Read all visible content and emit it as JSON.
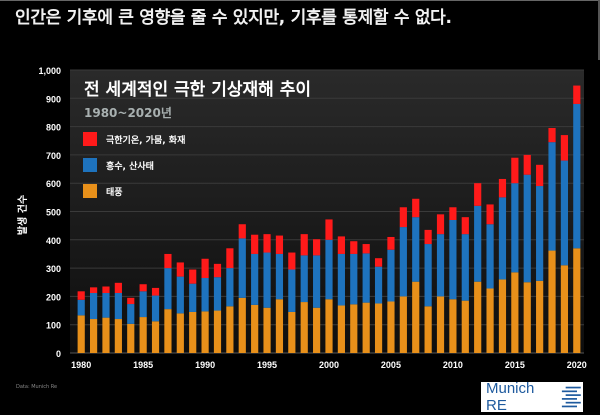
{
  "headline": "인간은 기후에 큰 영향을 줄 수 있지만, 기후를 통제할 수 없다.",
  "source": "Data: Munich Re",
  "logo": {
    "text": "Munich RE",
    "icon": "munich-re-logo-icon"
  },
  "colors": {
    "extreme_temp": "#ff1a1a",
    "flood": "#1e73be",
    "storm": "#e8901a",
    "background": "#000000",
    "plot_bg": "#1c1c1c"
  },
  "chart_data": {
    "type": "bar",
    "stacked": true,
    "title": "전 세계적인 극한 기상재해 추이",
    "subtitle": "1980~2020년",
    "xlabel": "",
    "ylabel": "발생 건수",
    "ylim": [
      0,
      1000
    ],
    "yticks": [
      "0",
      "100",
      "200",
      "300",
      "400",
      "500",
      "600",
      "700",
      "800",
      "900",
      "1,000"
    ],
    "xticks": [
      "1980",
      "1985",
      "1990",
      "1995",
      "2000",
      "2005",
      "2010",
      "2015",
      "2020"
    ],
    "grid": true,
    "legend_position": "top-left",
    "categories": [
      1980,
      1981,
      1982,
      1983,
      1984,
      1985,
      1986,
      1987,
      1988,
      1989,
      1990,
      1991,
      1992,
      1993,
      1994,
      1995,
      1996,
      1997,
      1998,
      1999,
      2000,
      2001,
      2002,
      2003,
      2004,
      2005,
      2006,
      2007,
      2008,
      2009,
      2010,
      2011,
      2012,
      2013,
      2014,
      2015,
      2016,
      2017,
      2018,
      2019,
      2020
    ],
    "series": [
      {
        "name": "태풍",
        "color": "#e8901a",
        "values": [
          133,
          120,
          125,
          120,
          103,
          127,
          112,
          155,
          140,
          145,
          147,
          150,
          165,
          195,
          170,
          160,
          190,
          145,
          180,
          160,
          190,
          168,
          172,
          178,
          175,
          182,
          200,
          252,
          165,
          200,
          190,
          185,
          252,
          228,
          260,
          285,
          250,
          255,
          362,
          310,
          370
        ]
      },
      {
        "name": "홍수, 산사태",
        "color": "#1e73be",
        "values": [
          55,
          92,
          87,
          92,
          70,
          91,
          91,
          145,
          130,
          100,
          118,
          118,
          135,
          210,
          180,
          195,
          160,
          150,
          165,
          185,
          210,
          182,
          178,
          174,
          130,
          183,
          245,
          228,
          220,
          220,
          280,
          235,
          268,
          227,
          290,
          315,
          380,
          335,
          383,
          370,
          510
        ]
      },
      {
        "name": "극한기온, 가뭄, 화재",
        "color": "#ff1a1a",
        "values": [
          30,
          20,
          23,
          36,
          22,
          25,
          27,
          50,
          50,
          50,
          68,
          47,
          70,
          50,
          68,
          65,
          65,
          60,
          75,
          57,
          72,
          62,
          45,
          33,
          30,
          45,
          70,
          65,
          50,
          70,
          45,
          60,
          80,
          70,
          65,
          90,
          70,
          75,
          50,
          90,
          65
        ]
      }
    ]
  }
}
